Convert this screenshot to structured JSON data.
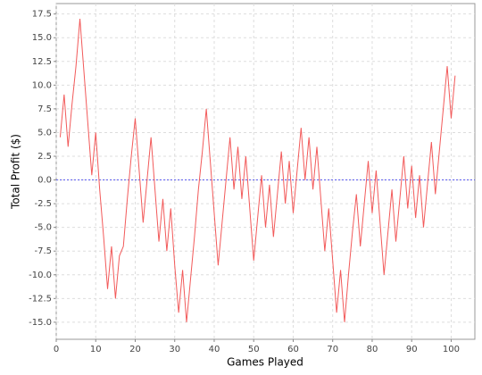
{
  "chart_data": {
    "type": "line",
    "x_label": "Games Played",
    "y_label": "Total Profit ($)",
    "x": [
      1,
      2,
      3,
      4,
      5,
      6,
      7,
      8,
      9,
      10,
      11,
      12,
      13,
      14,
      15,
      16,
      17,
      18,
      19,
      20,
      21,
      22,
      23,
      24,
      25,
      26,
      27,
      28,
      29,
      30,
      31,
      32,
      33,
      34,
      35,
      36,
      37,
      38,
      39,
      40,
      41,
      42,
      43,
      44,
      45,
      46,
      47,
      48,
      49,
      50,
      51,
      52,
      53,
      54,
      55,
      56,
      57,
      58,
      59,
      60,
      61,
      62,
      63,
      64,
      65,
      66,
      67,
      68,
      69,
      70,
      71,
      72,
      73,
      74,
      75,
      76,
      77,
      78,
      79,
      80,
      81,
      82,
      83,
      84,
      85,
      86,
      87,
      88,
      89,
      90,
      91,
      92,
      93,
      94,
      95,
      96,
      97,
      98,
      99,
      100,
      101
    ],
    "values": [
      4.5,
      9,
      3.5,
      8,
      12,
      17,
      11.5,
      6,
      0.5,
      5,
      -1,
      -6,
      -11.5,
      -7,
      -12.5,
      -8,
      -7,
      -2,
      2.5,
      6.5,
      1,
      -4.5,
      0,
      4.5,
      -1,
      -6.5,
      -2,
      -7.5,
      -3,
      -9,
      -14,
      -9.5,
      -15,
      -10.5,
      -6,
      -1,
      3,
      7.5,
      2,
      -3.5,
      -9,
      -4.5,
      0,
      4.5,
      -1,
      3.5,
      -2,
      2.5,
      -3,
      -8.5,
      -4,
      0.5,
      -5,
      -0.5,
      -6,
      -1.5,
      3,
      -2.5,
      2,
      -3.5,
      1,
      5.5,
      0,
      4.5,
      -1,
      3.5,
      -2,
      -7.5,
      -3,
      -8.5,
      -14,
      -9.5,
      -15,
      -10,
      -5.5,
      -1.5,
      -7,
      -2.5,
      2,
      -3.5,
      1,
      -4.5,
      -10,
      -5.5,
      -1,
      -6.5,
      -2,
      2.5,
      -3,
      1.5,
      -4,
      0.5,
      -5,
      -0.5,
      4,
      -1.5,
      3,
      7.5,
      12,
      6.5,
      11
    ],
    "color": "#f25a5a",
    "reference_line": 0,
    "reference_color": "#5b5bf0",
    "xlim": [
      0,
      106
    ],
    "xticks": [
      0,
      10,
      20,
      30,
      40,
      50,
      60,
      70,
      80,
      90,
      100
    ],
    "ylim": [
      -16.8,
      18.6
    ],
    "yticks": [
      {
        "value": 17.5,
        "label": "17.5"
      },
      {
        "value": 15,
        "label": "15.0"
      },
      {
        "value": 12.5,
        "label": "12.5"
      },
      {
        "value": 10,
        "label": "10.0"
      },
      {
        "value": 7.5,
        "label": "7.5"
      },
      {
        "value": 5,
        "label": "5.0"
      },
      {
        "value": 2.5,
        "label": "2.5"
      },
      {
        "value": 0,
        "label": "0.0"
      },
      -2.5,
      {
        "value": -5,
        "label": "-5.0"
      },
      -7.5,
      {
        "value": -10,
        "label": "-10.0"
      },
      -12.5,
      {
        "value": -15,
        "label": "-15.0"
      }
    ],
    "grid": true
  }
}
